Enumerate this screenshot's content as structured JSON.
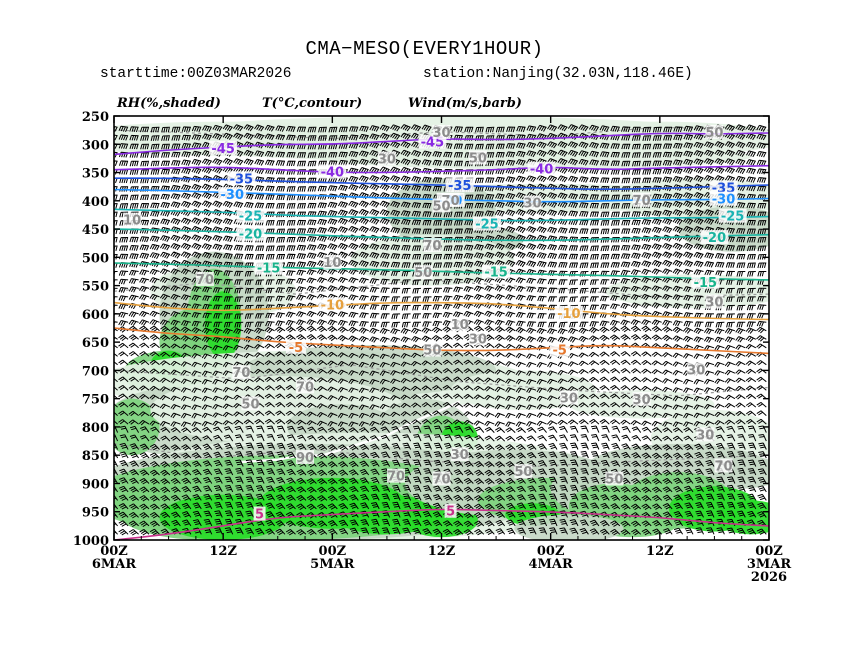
{
  "title": "CMA−MESO(EVERY1HOUR)",
  "starttime": "starttime:00Z03MAR2026",
  "station": "station:Nanjing(32.03N,118.46E)",
  "legend": {
    "rh": "RH(%,shaded)",
    "temp": "T(°C,contour)",
    "wind": "Wind(m/s,barb)"
  },
  "chart_data": {
    "type": "heatmap",
    "title": "CMA−MESO(EVERY1HOUR)",
    "y_axis": {
      "ticks": [
        250,
        300,
        350,
        400,
        450,
        500,
        550,
        600,
        650,
        700,
        750,
        800,
        850,
        900,
        950,
        1000
      ],
      "range": [
        250,
        1000
      ]
    },
    "x_axis": {
      "range": [
        0,
        72
      ],
      "ticks": [
        {
          "t": 0,
          "line1": "00Z",
          "line2": "6MAR",
          "line3": ""
        },
        {
          "t": 12,
          "line1": "12Z",
          "line2": "",
          "line3": ""
        },
        {
          "t": 24,
          "line1": "00Z",
          "line2": "5MAR",
          "line3": ""
        },
        {
          "t": 36,
          "line1": "12Z",
          "line2": "",
          "line3": ""
        },
        {
          "t": 48,
          "line1": "00Z",
          "line2": "4MAR",
          "line3": ""
        },
        {
          "t": 60,
          "line1": "12Z",
          "line2": "",
          "line3": ""
        },
        {
          "t": 72,
          "line1": "00Z",
          "line2": "3MAR",
          "line3": "2026"
        }
      ]
    },
    "rh_shading_colors": {
      "30": "#e3f1e3",
      "50": "#c4d7c4",
      "70": "#7dd47d",
      "90": "#28dc28"
    },
    "temperature_contours": [
      {
        "value": -45,
        "label": "-45",
        "color": "#8a2be2",
        "p": [
          318,
          310,
          305,
          300,
          300,
          295,
          290,
          292,
          290,
          285,
          280,
          282,
          280
        ],
        "labels_at": [
          [
            12,
            308
          ],
          [
            35,
            297
          ]
        ]
      },
      {
        "value": -40,
        "label": "-40",
        "color": "#8a2be2",
        "p": [
          345,
          342,
          340,
          345,
          350,
          350,
          348,
          345,
          340,
          345,
          342,
          340,
          338
        ],
        "labels_at": [
          [
            24,
            350
          ],
          [
            47,
            345
          ]
        ]
      },
      {
        "value": -35,
        "label": "-35",
        "color": "#1e50dc",
        "p": [
          360,
          360,
          362,
          365,
          368,
          370,
          372,
          375,
          378,
          380,
          378,
          375,
          372
        ],
        "labels_at": [
          [
            14,
            362
          ],
          [
            38,
            374
          ],
          [
            67,
            378
          ]
        ]
      },
      {
        "value": -30,
        "label": "-30",
        "color": "#1e90ff",
        "p": [
          380,
          382,
          385,
          388,
          392,
          395,
          398,
          400,
          402,
          400,
          398,
          398,
          396
        ],
        "labels_at": [
          [
            13,
            390
          ],
          [
            37,
            400
          ],
          [
            67,
            398
          ]
        ]
      },
      {
        "value": -25,
        "label": "-25",
        "color": "#19b4b4",
        "p": [
          415,
          418,
          420,
          425,
          428,
          430,
          432,
          435,
          435,
          432,
          430,
          430,
          428
        ],
        "labels_at": [
          [
            15,
            428
          ],
          [
            41,
            442
          ],
          [
            68,
            428
          ]
        ]
      },
      {
        "value": -20,
        "label": "-20",
        "color": "#19b4a0",
        "p": [
          450,
          452,
          455,
          458,
          462,
          465,
          468,
          470,
          470,
          468,
          465,
          462,
          460
        ],
        "labels_at": [
          [
            15,
            460
          ],
          [
            66,
            466
          ]
        ]
      },
      {
        "value": -15,
        "label": "-15",
        "color": "#19b48c",
        "p": [
          510,
          512,
          515,
          518,
          520,
          522,
          525,
          528,
          530,
          532,
          535,
          538,
          540
        ],
        "labels_at": [
          [
            17,
            520
          ],
          [
            42,
            527
          ],
          [
            65,
            545
          ]
        ]
      },
      {
        "value": -10,
        "label": "-10",
        "color": "#e6a03c",
        "p": [
          580,
          590,
          595,
          590,
          585,
          580,
          580,
          582,
          590,
          600,
          605,
          608,
          610
        ],
        "labels_at": [
          [
            24,
            585
          ],
          [
            50,
            600
          ]
        ]
      },
      {
        "value": -5,
        "label": "-5",
        "color": "#e6782d",
        "p": [
          625,
          635,
          640,
          650,
          655,
          660,
          665,
          665,
          660,
          655,
          660,
          665,
          670
        ],
        "labels_at": [
          [
            20,
            660
          ],
          [
            49,
            665
          ]
        ]
      },
      {
        "value": 5,
        "label": "5",
        "color": "#c8328c",
        "p": [
          1000,
          990,
          975,
          960,
          955,
          950,
          945,
          948,
          950,
          955,
          960,
          970,
          975
        ],
        "labels_at": [
          [
            16,
            955
          ],
          [
            37,
            950
          ]
        ]
      }
    ],
    "rh_labels": [
      {
        "text": "30",
        "t": 36,
        "p": 280
      },
      {
        "text": "50",
        "t": 66,
        "p": 280
      },
      {
        "text": "50",
        "t": 40,
        "p": 325
      },
      {
        "text": "30",
        "t": 30,
        "p": 327
      },
      {
        "text": "70",
        "t": 37,
        "p": 400
      },
      {
        "text": "70",
        "t": 58,
        "p": 400
      },
      {
        "text": "50",
        "t": 36,
        "p": 410
      },
      {
        "text": "30",
        "t": 46,
        "p": 405
      },
      {
        "text": "10",
        "t": 2,
        "p": 435
      },
      {
        "text": "70",
        "t": 35,
        "p": 480
      },
      {
        "text": "10",
        "t": 24,
        "p": 510
      },
      {
        "text": "50",
        "t": 34,
        "p": 528
      },
      {
        "text": "70",
        "t": 10,
        "p": 540
      },
      {
        "text": "30",
        "t": 66,
        "p": 580
      },
      {
        "text": "10",
        "t": 38,
        "p": 620
      },
      {
        "text": "30",
        "t": 40,
        "p": 645
      },
      {
        "text": "50",
        "t": 35,
        "p": 665
      },
      {
        "text": "30",
        "t": 64,
        "p": 700
      },
      {
        "text": "70",
        "t": 14,
        "p": 705
      },
      {
        "text": "70",
        "t": 21,
        "p": 730
      },
      {
        "text": "50",
        "t": 15,
        "p": 760
      },
      {
        "text": "30",
        "t": 50,
        "p": 750
      },
      {
        "text": "30",
        "t": 58,
        "p": 752
      },
      {
        "text": "30",
        "t": 65,
        "p": 815
      },
      {
        "text": "90",
        "t": 21,
        "p": 855
      },
      {
        "text": "30",
        "t": 38,
        "p": 850
      },
      {
        "text": "50",
        "t": 45,
        "p": 880
      },
      {
        "text": "70",
        "t": 67,
        "p": 870
      },
      {
        "text": "70",
        "t": 31,
        "p": 888
      },
      {
        "text": "70",
        "t": 36,
        "p": 893
      },
      {
        "text": "50",
        "t": 55,
        "p": 893
      }
    ]
  }
}
